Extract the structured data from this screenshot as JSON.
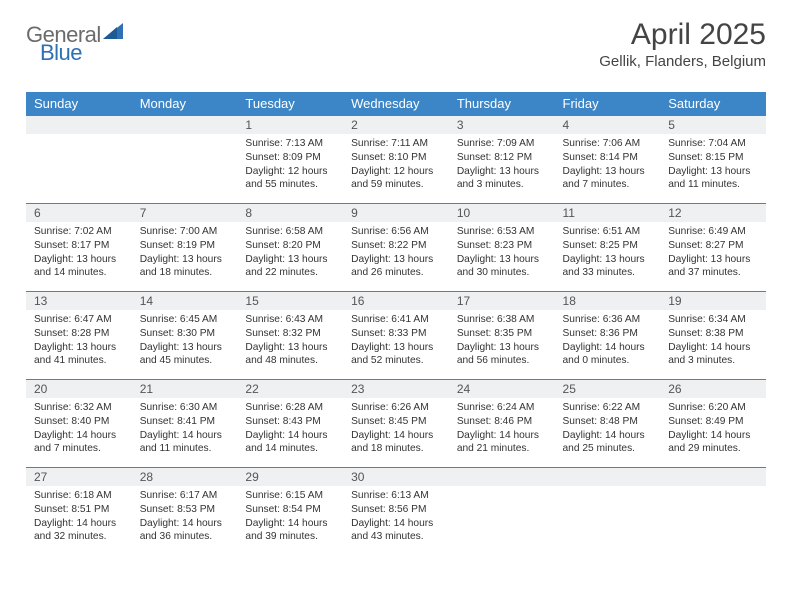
{
  "brand": {
    "part1": "General",
    "part2": "Blue"
  },
  "title": "April 2025",
  "location": "Gellik, Flanders, Belgium",
  "colors": {
    "header_bg": "#3c85c6",
    "header_text": "#ffffff",
    "daynum_bg": "#eef0f2",
    "daynum_border": "#3c85c6",
    "brand_gray": "#6b6b6b",
    "brand_blue": "#2f6fb3",
    "page_bg": "#ffffff",
    "body_text": "#333333"
  },
  "weekdays": [
    "Sunday",
    "Monday",
    "Tuesday",
    "Wednesday",
    "Thursday",
    "Friday",
    "Saturday"
  ],
  "weeks": [
    [
      {
        "blank": true
      },
      {
        "blank": true
      },
      {
        "num": "1",
        "sunrise": "Sunrise: 7:13 AM",
        "sunset": "Sunset: 8:09 PM",
        "daylight": "Daylight: 12 hours and 55 minutes."
      },
      {
        "num": "2",
        "sunrise": "Sunrise: 7:11 AM",
        "sunset": "Sunset: 8:10 PM",
        "daylight": "Daylight: 12 hours and 59 minutes."
      },
      {
        "num": "3",
        "sunrise": "Sunrise: 7:09 AM",
        "sunset": "Sunset: 8:12 PM",
        "daylight": "Daylight: 13 hours and 3 minutes."
      },
      {
        "num": "4",
        "sunrise": "Sunrise: 7:06 AM",
        "sunset": "Sunset: 8:14 PM",
        "daylight": "Daylight: 13 hours and 7 minutes."
      },
      {
        "num": "5",
        "sunrise": "Sunrise: 7:04 AM",
        "sunset": "Sunset: 8:15 PM",
        "daylight": "Daylight: 13 hours and 11 minutes."
      }
    ],
    [
      {
        "num": "6",
        "sunrise": "Sunrise: 7:02 AM",
        "sunset": "Sunset: 8:17 PM",
        "daylight": "Daylight: 13 hours and 14 minutes."
      },
      {
        "num": "7",
        "sunrise": "Sunrise: 7:00 AM",
        "sunset": "Sunset: 8:19 PM",
        "daylight": "Daylight: 13 hours and 18 minutes."
      },
      {
        "num": "8",
        "sunrise": "Sunrise: 6:58 AM",
        "sunset": "Sunset: 8:20 PM",
        "daylight": "Daylight: 13 hours and 22 minutes."
      },
      {
        "num": "9",
        "sunrise": "Sunrise: 6:56 AM",
        "sunset": "Sunset: 8:22 PM",
        "daylight": "Daylight: 13 hours and 26 minutes."
      },
      {
        "num": "10",
        "sunrise": "Sunrise: 6:53 AM",
        "sunset": "Sunset: 8:23 PM",
        "daylight": "Daylight: 13 hours and 30 minutes."
      },
      {
        "num": "11",
        "sunrise": "Sunrise: 6:51 AM",
        "sunset": "Sunset: 8:25 PM",
        "daylight": "Daylight: 13 hours and 33 minutes."
      },
      {
        "num": "12",
        "sunrise": "Sunrise: 6:49 AM",
        "sunset": "Sunset: 8:27 PM",
        "daylight": "Daylight: 13 hours and 37 minutes."
      }
    ],
    [
      {
        "num": "13",
        "sunrise": "Sunrise: 6:47 AM",
        "sunset": "Sunset: 8:28 PM",
        "daylight": "Daylight: 13 hours and 41 minutes."
      },
      {
        "num": "14",
        "sunrise": "Sunrise: 6:45 AM",
        "sunset": "Sunset: 8:30 PM",
        "daylight": "Daylight: 13 hours and 45 minutes."
      },
      {
        "num": "15",
        "sunrise": "Sunrise: 6:43 AM",
        "sunset": "Sunset: 8:32 PM",
        "daylight": "Daylight: 13 hours and 48 minutes."
      },
      {
        "num": "16",
        "sunrise": "Sunrise: 6:41 AM",
        "sunset": "Sunset: 8:33 PM",
        "daylight": "Daylight: 13 hours and 52 minutes."
      },
      {
        "num": "17",
        "sunrise": "Sunrise: 6:38 AM",
        "sunset": "Sunset: 8:35 PM",
        "daylight": "Daylight: 13 hours and 56 minutes."
      },
      {
        "num": "18",
        "sunrise": "Sunrise: 6:36 AM",
        "sunset": "Sunset: 8:36 PM",
        "daylight": "Daylight: 14 hours and 0 minutes."
      },
      {
        "num": "19",
        "sunrise": "Sunrise: 6:34 AM",
        "sunset": "Sunset: 8:38 PM",
        "daylight": "Daylight: 14 hours and 3 minutes."
      }
    ],
    [
      {
        "num": "20",
        "sunrise": "Sunrise: 6:32 AM",
        "sunset": "Sunset: 8:40 PM",
        "daylight": "Daylight: 14 hours and 7 minutes."
      },
      {
        "num": "21",
        "sunrise": "Sunrise: 6:30 AM",
        "sunset": "Sunset: 8:41 PM",
        "daylight": "Daylight: 14 hours and 11 minutes."
      },
      {
        "num": "22",
        "sunrise": "Sunrise: 6:28 AM",
        "sunset": "Sunset: 8:43 PM",
        "daylight": "Daylight: 14 hours and 14 minutes."
      },
      {
        "num": "23",
        "sunrise": "Sunrise: 6:26 AM",
        "sunset": "Sunset: 8:45 PM",
        "daylight": "Daylight: 14 hours and 18 minutes."
      },
      {
        "num": "24",
        "sunrise": "Sunrise: 6:24 AM",
        "sunset": "Sunset: 8:46 PM",
        "daylight": "Daylight: 14 hours and 21 minutes."
      },
      {
        "num": "25",
        "sunrise": "Sunrise: 6:22 AM",
        "sunset": "Sunset: 8:48 PM",
        "daylight": "Daylight: 14 hours and 25 minutes."
      },
      {
        "num": "26",
        "sunrise": "Sunrise: 6:20 AM",
        "sunset": "Sunset: 8:49 PM",
        "daylight": "Daylight: 14 hours and 29 minutes."
      }
    ],
    [
      {
        "num": "27",
        "sunrise": "Sunrise: 6:18 AM",
        "sunset": "Sunset: 8:51 PM",
        "daylight": "Daylight: 14 hours and 32 minutes."
      },
      {
        "num": "28",
        "sunrise": "Sunrise: 6:17 AM",
        "sunset": "Sunset: 8:53 PM",
        "daylight": "Daylight: 14 hours and 36 minutes."
      },
      {
        "num": "29",
        "sunrise": "Sunrise: 6:15 AM",
        "sunset": "Sunset: 8:54 PM",
        "daylight": "Daylight: 14 hours and 39 minutes."
      },
      {
        "num": "30",
        "sunrise": "Sunrise: 6:13 AM",
        "sunset": "Sunset: 8:56 PM",
        "daylight": "Daylight: 14 hours and 43 minutes."
      },
      {
        "blank": true
      },
      {
        "blank": true
      },
      {
        "blank": true
      }
    ]
  ]
}
